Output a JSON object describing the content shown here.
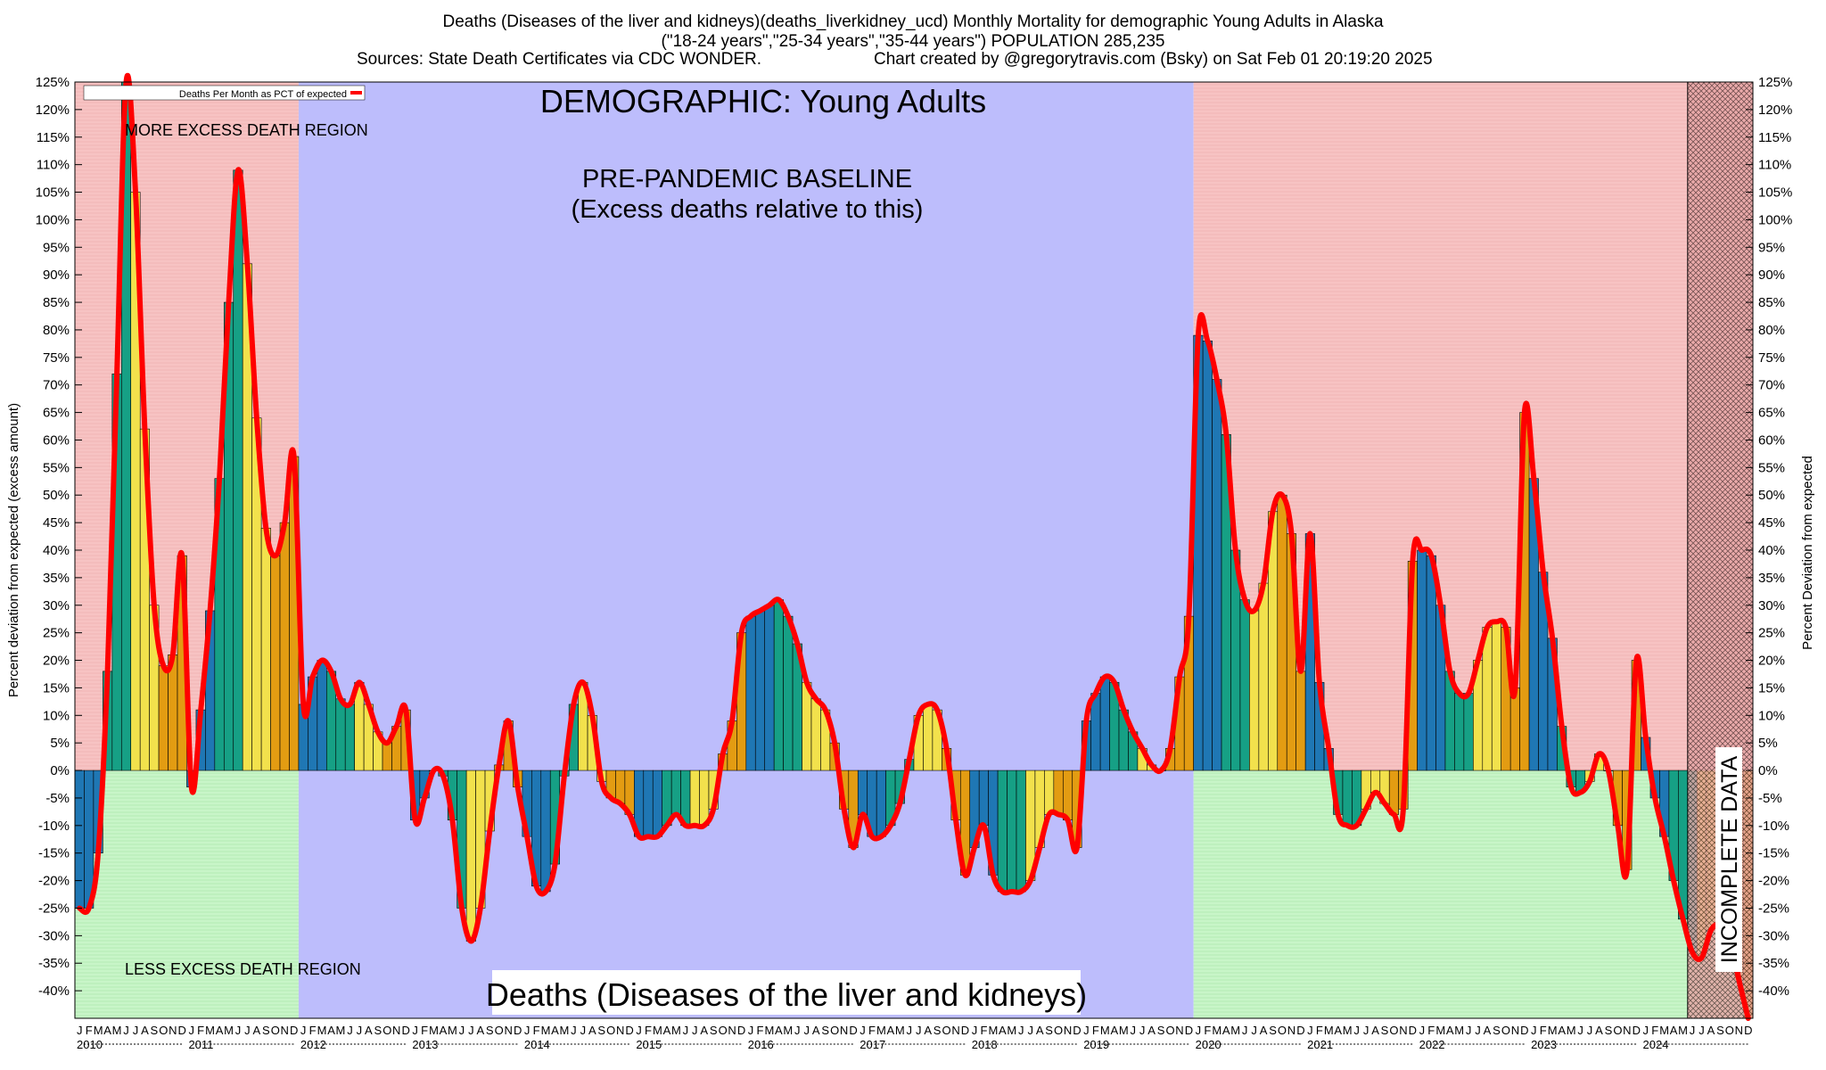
{
  "header": {
    "line1": "Deaths (Diseases of the liver and kidneys)(deaths_liverkidney_ucd) Monthly Mortality for demographic Young Adults in Alaska",
    "line2": "(\"18-24 years\",\"25-34 years\",\"35-44 years\") POPULATION 285,235",
    "line3_left": "Sources: State Death Certificates via CDC WONDER.",
    "line3_right": "Chart created by @gregorytravis.com (Bsky) on Sat Feb 01 20:19:20 2025"
  },
  "annotations": {
    "demographic": "DEMOGRAPHIC: Young Adults",
    "baseline_line1": "PRE-PANDEMIC BASELINE",
    "baseline_line2": "(Excess deaths relative to this)",
    "more_region": "MORE EXCESS DEATH REGION",
    "less_region": "LESS EXCESS DEATH REGION",
    "bottom_title": "Deaths (Diseases of the liver and kidneys)",
    "incomplete": "INCOMPLETE DATA"
  },
  "legend": {
    "label": "Deaths Per Month as PCT of expected",
    "color": "#ff0000"
  },
  "colors": {
    "excess_region": "#f7c3c3",
    "deficit_region": "#c8f5c8",
    "baseline_region": "#bdbdfc",
    "incomplete_region": "#e8a6a6",
    "line": "#ff0000",
    "bar_palette": [
      "#1f77b4",
      "#1f77b4",
      "#1f77b4",
      "#16a085",
      "#16a085",
      "#16a085",
      "#f2e14c",
      "#f2e14c",
      "#f2e14c",
      "#e39c12",
      "#e39c12",
      "#e39c12"
    ]
  },
  "chart_data": {
    "type": "bar",
    "title": "Deaths (Diseases of the liver and kidneys)",
    "ylabel_left": "Percent deviation from expected (excess amount)",
    "ylabel_right": "Percent Deviation from expected",
    "ylim": [
      -45,
      125
    ],
    "yticks": [
      125,
      120,
      115,
      110,
      105,
      100,
      95,
      90,
      85,
      80,
      75,
      70,
      65,
      60,
      55,
      50,
      45,
      40,
      35,
      30,
      25,
      20,
      15,
      10,
      5,
      0,
      -5,
      -10,
      -15,
      -20,
      -25,
      -30,
      -35,
      -40
    ],
    "tick_suffix": "%",
    "years": [
      "2010",
      "2011",
      "2012",
      "2013",
      "2014",
      "2015",
      "2016",
      "2017",
      "2018",
      "2019",
      "2020",
      "2021",
      "2022",
      "2023",
      "2024"
    ],
    "month_letters": [
      "J",
      "F",
      "M",
      "A",
      "M",
      "J",
      "J",
      "A",
      "S",
      "O",
      "N",
      "D"
    ],
    "baseline_years": [
      "2012",
      "2019"
    ],
    "incomplete_from": "2024-06",
    "grid": true,
    "legend_position": "top-left",
    "series": [
      {
        "name": "Deaths Per Month as PCT of expected",
        "start": "2010-01",
        "values": [
          -25,
          -25,
          -15,
          18,
          72,
          125,
          105,
          62,
          30,
          19,
          21,
          39,
          -3,
          11,
          29,
          53,
          85,
          109,
          92,
          64,
          44,
          39,
          45,
          57,
          12,
          17,
          20,
          18,
          13,
          12,
          16,
          12,
          7,
          5,
          8,
          11,
          -9,
          -5,
          0,
          -1,
          -9,
          -25,
          -31,
          -25,
          -11,
          1,
          9,
          -3,
          -12,
          -21,
          -22,
          -17,
          -1,
          12,
          16,
          10,
          -2,
          -5,
          -6,
          -8,
          -12,
          -12,
          -12,
          -10,
          -8,
          -10,
          -10,
          -10,
          -7,
          3,
          9,
          25,
          28,
          29,
          30,
          31,
          28,
          23,
          16,
          13,
          11,
          5,
          -7,
          -14,
          -8,
          -12,
          -12,
          -10,
          -6,
          2,
          10,
          12,
          11,
          4,
          -9,
          -19,
          -14,
          -10,
          -19,
          -22,
          -22,
          -22,
          -20,
          -14,
          -8,
          -8,
          -9,
          -14,
          9,
          14,
          17,
          16,
          11,
          7,
          4,
          1,
          0,
          4,
          17,
          28,
          79,
          78,
          71,
          61,
          40,
          31,
          29,
          34,
          47,
          50,
          43,
          18,
          43,
          16,
          4,
          -8,
          -10,
          -10,
          -7,
          -4,
          -6,
          -8,
          -7,
          38,
          40,
          39,
          30,
          18,
          14,
          14,
          20,
          26,
          27,
          26,
          15,
          65,
          53,
          36,
          24,
          8,
          -3,
          -4,
          -2,
          3,
          0,
          -10,
          -18,
          20,
          6,
          -5,
          -12,
          -20,
          -27,
          -33,
          -34,
          -29,
          -28,
          -30,
          -38,
          -45
        ]
      }
    ]
  }
}
